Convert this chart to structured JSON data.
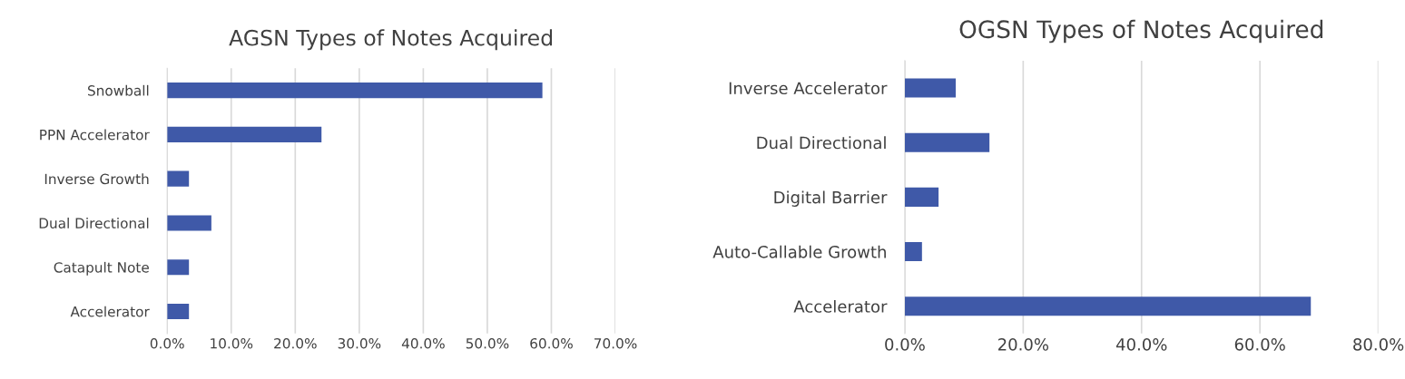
{
  "chart_data": [
    {
      "type": "bar",
      "orientation": "horizontal",
      "title": "AGSN Types of Notes Acquired",
      "categories": [
        "Snowball",
        "PPN Accelerator",
        "Inverse Growth",
        "Dual Directional",
        "Catapult Note",
        "Accelerator"
      ],
      "series": [
        {
          "color": "#3f59a8",
          "values": [
            58.6,
            24.1,
            3.4,
            6.9,
            3.4,
            3.4
          ]
        }
      ],
      "xlim": [
        0,
        70
      ],
      "xticks": [
        {
          "value": 0,
          "label": "0.0%"
        },
        {
          "value": 10,
          "label": "10.0%"
        },
        {
          "value": 20,
          "label": "20.0%"
        },
        {
          "value": 30,
          "label": "30.0%"
        },
        {
          "value": 40,
          "label": "40.0%"
        },
        {
          "value": 50,
          "label": "50.0%"
        },
        {
          "value": 60,
          "label": "60.0%"
        },
        {
          "value": 70,
          "label": "70.0%"
        }
      ],
      "grid": "x",
      "legend": false
    },
    {
      "type": "bar",
      "orientation": "horizontal",
      "title": "OGSN Types of Notes Acquired",
      "categories": [
        "Inverse Accelerator",
        "Dual Directional",
        "Digital Barrier",
        "Auto-Callable Growth",
        "Accelerator"
      ],
      "series": [
        {
          "color": "#3f59a8",
          "values": [
            8.6,
            14.3,
            5.7,
            2.9,
            68.6
          ]
        }
      ],
      "xlim": [
        0,
        80
      ],
      "xticks": [
        {
          "value": 0,
          "label": "0.0%"
        },
        {
          "value": 20,
          "label": "20.0%"
        },
        {
          "value": 40,
          "label": "40.0%"
        },
        {
          "value": 60,
          "label": "60.0%"
        },
        {
          "value": 80,
          "label": "80.0%"
        }
      ],
      "grid": "x",
      "legend": false
    }
  ]
}
